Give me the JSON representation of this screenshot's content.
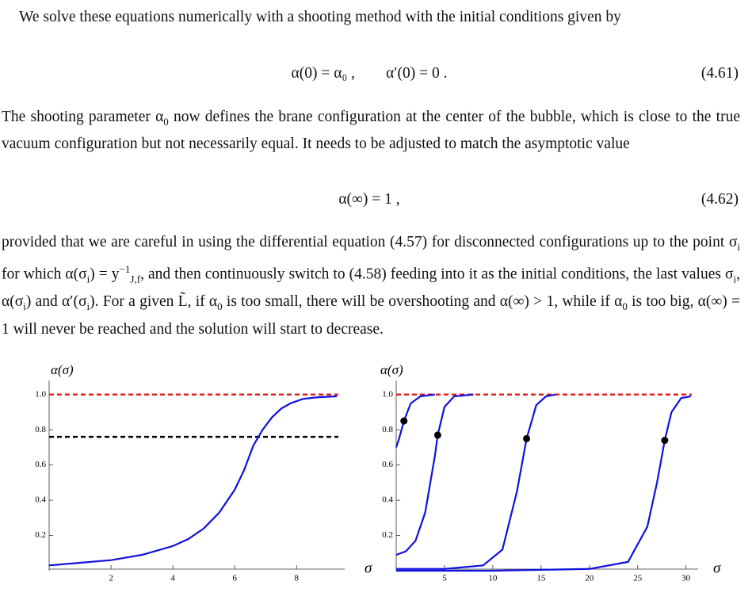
{
  "paragraphs": [
    [
      {
        "t": "We solve these equations numerically with a shooting method with the initial conditions given by"
      }
    ],
    [
      {
        "t": "The shooting parameter α"
      },
      {
        "t": "0",
        "s": "sub"
      },
      {
        "t": " now defines the brane configuration at the center of the bubble, which is close to the true vacuum configuration but not necessarily equal. It needs to be adjusted to match the asymptotic value"
      }
    ],
    [
      {
        "t": "provided that we are careful in using the differential equation (4.57) for disconnected configurations up to the point σ"
      },
      {
        "t": "i",
        "s": "sub"
      },
      {
        "t": " for which α(σ"
      },
      {
        "t": "i",
        "s": "sub"
      },
      {
        "t": ") = y"
      },
      {
        "t": "−1",
        "s": "sup"
      },
      {
        "t": "J,f",
        "s": "sub"
      },
      {
        "t": ", and then continuously switch to (4.58) feeding into it as the initial conditions, the last values σ"
      },
      {
        "t": "i",
        "s": "sub"
      },
      {
        "t": ", α(σ"
      },
      {
        "t": "i",
        "s": "sub"
      },
      {
        "t": ") and α′(σ"
      },
      {
        "t": "i",
        "s": "sub"
      },
      {
        "t": "). For a given L̃, if α"
      },
      {
        "t": "0",
        "s": "sub"
      },
      {
        "t": " is too small, there will be overshooting and α(∞) > 1, while if α"
      },
      {
        "t": "0",
        "s": "sub"
      },
      {
        "t": " is too big, α(∞) = 1 will never be reached and the solution will start to decrease."
      }
    ]
  ],
  "equations": [
    {
      "text": "α(0) = α₀ ,        α′(0) = 0 .",
      "number": "(4.61)"
    },
    {
      "text": "α(∞) = 1 ,",
      "number": "(4.62)"
    }
  ],
  "chart_data": [
    {
      "type": "line",
      "ylabel": "α(σ)",
      "xlabel": "σ",
      "xlim": [
        0,
        9.35
      ],
      "ylim": [
        0,
        1.08
      ],
      "xticks": [
        2,
        4,
        6,
        8
      ],
      "yticks": [
        0.2,
        0.4,
        0.6,
        0.8,
        {
          "value": 1,
          "label": "1.0"
        }
      ],
      "series": [
        {
          "color": "#1010e0",
          "x": [
            0,
            1,
            2,
            3,
            4,
            4.5,
            5,
            5.5,
            6,
            6.3,
            6.6,
            6.9,
            7.2,
            7.5,
            7.8,
            8.2,
            8.7,
            9.3
          ],
          "values": [
            0.03,
            0.045,
            0.06,
            0.09,
            0.14,
            0.18,
            0.24,
            0.33,
            0.46,
            0.57,
            0.71,
            0.8,
            0.87,
            0.92,
            0.95,
            0.975,
            0.985,
            0.99
          ]
        }
      ],
      "reference_lines": [
        {
          "y": 1,
          "color": "#e02020"
        },
        {
          "y": 0.76,
          "color": "#000000"
        }
      ]
    },
    {
      "type": "line",
      "ylabel": "α(σ)",
      "xlabel": "σ",
      "xlim": [
        0,
        30.6
      ],
      "ylim": [
        0,
        1.08
      ],
      "xticks": [
        5,
        10,
        15,
        20,
        25,
        30
      ],
      "yticks": [
        0.2,
        0.4,
        0.6,
        0.8,
        {
          "value": 1,
          "label": "1.0"
        }
      ],
      "series": [
        {
          "color": "#1010e0",
          "x": [
            0,
            0.3,
            0.8,
            1.5,
            2.5,
            4
          ],
          "values": [
            0.7,
            0.75,
            0.85,
            0.95,
            0.99,
            1
          ]
        },
        {
          "color": "#1010e0",
          "x": [
            0,
            1,
            2,
            3,
            4,
            4.3,
            5,
            6,
            8
          ],
          "values": [
            0.09,
            0.11,
            0.17,
            0.33,
            0.65,
            0.77,
            0.93,
            0.99,
            1
          ]
        },
        {
          "color": "#1010e0",
          "x": [
            0,
            5,
            9,
            11,
            12.5,
            13.5,
            14.5,
            15.5,
            16.5
          ],
          "values": [
            0.01,
            0.01,
            0.03,
            0.12,
            0.45,
            0.75,
            0.94,
            0.99,
            1
          ]
        },
        {
          "color": "#1010e0",
          "x": [
            0,
            10,
            20,
            24,
            26,
            27,
            27.8,
            28.5,
            29.5,
            30.5
          ],
          "values": [
            0,
            0,
            0.01,
            0.05,
            0.25,
            0.5,
            0.74,
            0.9,
            0.98,
            0.99
          ]
        }
      ],
      "points": {
        "color": "#000000",
        "x": [
          0.8,
          4.3,
          13.5,
          27.8
        ],
        "values": [
          0.85,
          0.77,
          0.75,
          0.74
        ]
      },
      "reference_lines": [
        {
          "y": 1,
          "color": "#e02020"
        }
      ]
    }
  ]
}
